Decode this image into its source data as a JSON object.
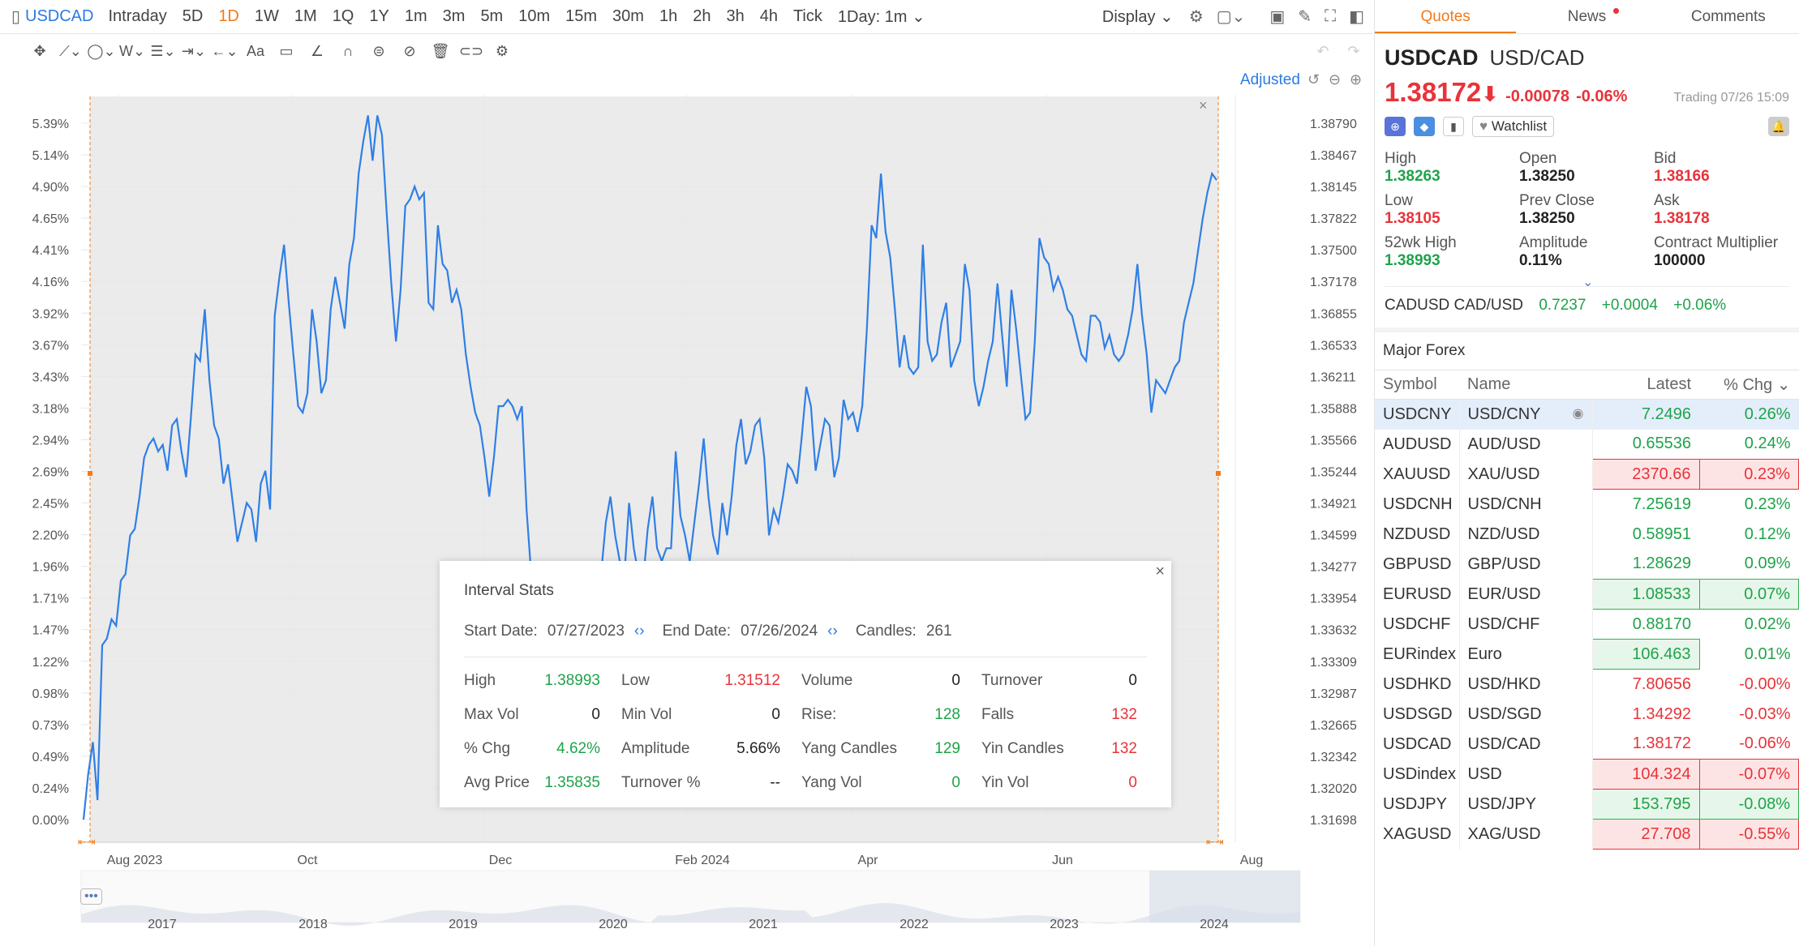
{
  "toolbar": {
    "symbol": "USDCAD",
    "timeframes": [
      "Intraday",
      "5D",
      "1D",
      "1W",
      "1M",
      "1Q",
      "1Y",
      "1m",
      "3m",
      "5m",
      "10m",
      "15m",
      "30m",
      "1h",
      "2h",
      "3h",
      "4h",
      "Tick"
    ],
    "active_timeframe": "1D",
    "interval_select": "1Day: 1m",
    "display": "Display",
    "adjusted": "Adjusted"
  },
  "chart_data": {
    "type": "line",
    "x_tick_labels": [
      "Aug 2023",
      "Oct",
      "Dec",
      "Feb 2024",
      "Apr",
      "Jun",
      "Aug"
    ],
    "y_left_ticks": [
      "5.39%",
      "5.14%",
      "4.90%",
      "4.65%",
      "4.41%",
      "4.16%",
      "3.92%",
      "3.67%",
      "3.43%",
      "3.18%",
      "2.94%",
      "2.69%",
      "2.45%",
      "2.20%",
      "1.96%",
      "1.71%",
      "1.47%",
      "1.22%",
      "0.98%",
      "0.73%",
      "0.49%",
      "0.24%",
      "0.00%"
    ],
    "y_right_ticks": [
      "1.38790",
      "1.38467",
      "1.38145",
      "1.37822",
      "1.37500",
      "1.37178",
      "1.36855",
      "1.36533",
      "1.36211",
      "1.35888",
      "1.35566",
      "1.35244",
      "1.34921",
      "1.34599",
      "1.34277",
      "1.33954",
      "1.33632",
      "1.33309",
      "1.32987",
      "1.32665",
      "1.32342",
      "1.32020",
      "1.31698"
    ],
    "series": [
      {
        "values": [
          0.0,
          0.35,
          0.6,
          0.15,
          1.35,
          1.4,
          1.55,
          1.5,
          1.85,
          1.9,
          2.2,
          2.25,
          2.5,
          2.8,
          2.9,
          2.95,
          2.85,
          2.9,
          2.7,
          3.05,
          3.1,
          2.85,
          2.65,
          3.1,
          3.6,
          3.55,
          3.95,
          3.4,
          3.05,
          2.95,
          2.6,
          2.75,
          2.45,
          2.15,
          2.3,
          2.45,
          2.4,
          2.15,
          2.6,
          2.7,
          2.4,
          3.9,
          4.2,
          4.45,
          4.0,
          3.6,
          3.2,
          3.15,
          3.3,
          3.95,
          3.7,
          3.3,
          3.4,
          3.95,
          4.2,
          4.0,
          3.8,
          4.3,
          4.5,
          5.0,
          5.25,
          5.45,
          5.1,
          5.45,
          5.3,
          4.7,
          4.15,
          3.7,
          4.1,
          4.75,
          4.8,
          4.9,
          4.8,
          4.85,
          4.0,
          3.95,
          4.6,
          4.3,
          4.25,
          4.0,
          4.1,
          3.95,
          3.6,
          3.35,
          3.15,
          3.05,
          2.8,
          2.5,
          2.8,
          3.2,
          3.2,
          3.25,
          3.2,
          3.1,
          3.2,
          2.4,
          1.9,
          1.4,
          1.2,
          1.0,
          0.8,
          0.6,
          0.4,
          0.6,
          0.8,
          1.0,
          1.2,
          1.0,
          1.3,
          1.5,
          1.7,
          1.9,
          2.3,
          2.5,
          2.2,
          2.0,
          1.9,
          2.45,
          2.1,
          1.9,
          1.85,
          2.25,
          2.5,
          2.1,
          2.0,
          2.1,
          2.1,
          2.85,
          2.35,
          2.2,
          2.0,
          2.3,
          2.6,
          2.95,
          2.5,
          2.2,
          2.05,
          2.45,
          2.2,
          2.5,
          2.9,
          3.1,
          2.75,
          2.85,
          3.05,
          3.1,
          2.8,
          2.2,
          2.4,
          2.3,
          2.5,
          2.75,
          2.7,
          2.6,
          2.95,
          3.35,
          3.2,
          2.7,
          2.9,
          3.1,
          3.05,
          2.65,
          2.8,
          3.25,
          3.1,
          3.15,
          3.0,
          3.2,
          3.8,
          4.6,
          4.5,
          5.0,
          4.55,
          4.35,
          3.95,
          3.5,
          3.75,
          3.5,
          3.45,
          3.5,
          4.45,
          3.7,
          3.55,
          3.6,
          3.85,
          4.0,
          3.5,
          3.6,
          3.7,
          4.3,
          4.1,
          3.4,
          3.2,
          3.35,
          3.55,
          3.7,
          4.15,
          3.75,
          3.35,
          4.1,
          3.8,
          3.45,
          3.1,
          3.15,
          3.7,
          4.5,
          4.35,
          4.3,
          4.1,
          4.2,
          4.1,
          3.95,
          3.9,
          3.75,
          3.6,
          3.55,
          3.9,
          3.9,
          3.85,
          3.65,
          3.75,
          3.6,
          3.55,
          3.6,
          3.75,
          3.95,
          4.3,
          3.9,
          3.6,
          3.15,
          3.4,
          3.35,
          3.3,
          3.4,
          3.5,
          3.55,
          3.85,
          4.0,
          4.15,
          4.4,
          4.65,
          4.85,
          5.0,
          4.95
        ]
      }
    ]
  },
  "nav_years": [
    "2017",
    "2018",
    "2019",
    "2020",
    "2021",
    "2022",
    "2023",
    "2024"
  ],
  "interval_stats": {
    "title": "Interval Stats",
    "start_label": "Start Date:",
    "start": "07/27/2023",
    "end_label": "End Date:",
    "end": "07/26/2024",
    "candles_label": "Candles:",
    "candles": "261",
    "cells": [
      [
        "High",
        "1.38993",
        "green"
      ],
      [
        "Low",
        "1.31512",
        "red"
      ],
      [
        "Volume",
        "0",
        "dark"
      ],
      [
        "Turnover",
        "0",
        "dark"
      ],
      [
        "Max Vol",
        "0",
        "dark"
      ],
      [
        "Min Vol",
        "0",
        "dark"
      ],
      [
        "Rise:",
        "128",
        "green"
      ],
      [
        "Falls",
        "132",
        "red"
      ],
      [
        "% Chg",
        "4.62%",
        "green"
      ],
      [
        "Amplitude",
        "5.66%",
        "dark"
      ],
      [
        "Yang Candles",
        "129",
        "green"
      ],
      [
        "Yin Candles",
        "132",
        "red"
      ],
      [
        "Avg Price",
        "1.35835",
        "green"
      ],
      [
        "Turnover %",
        "--",
        "dark"
      ],
      [
        "Yang Vol",
        "0",
        "green"
      ],
      [
        "Yin Vol",
        "0",
        "red"
      ]
    ]
  },
  "panel": {
    "tabs": [
      "Quotes",
      "News",
      "Comments"
    ],
    "symbol": "USDCAD",
    "name": "USD/CAD",
    "price": "1.38172",
    "change": "-0.00078",
    "pct": "-0.06%",
    "status": "Trading 07/26 15:09",
    "watchlist": "Watchlist",
    "stats": [
      [
        "High",
        "1.38263",
        "green"
      ],
      [
        "Open",
        "1.38250",
        "dark"
      ],
      [
        "Bid",
        "1.38166",
        "red"
      ],
      [
        "Low",
        "1.38105",
        "red"
      ],
      [
        "Prev Close",
        "1.38250",
        "dark"
      ],
      [
        "Ask",
        "1.38178",
        "red"
      ],
      [
        "52wk High",
        "1.38993",
        "green"
      ],
      [
        "Amplitude",
        "0.11%",
        "dark"
      ],
      [
        "Contract Multiplier",
        "100000",
        "dark"
      ]
    ],
    "cad_row": {
      "name": "CADUSD CAD/USD",
      "price": "0.7237",
      "change": "+0.0004",
      "pct": "+0.06%"
    },
    "forex_title": "Major Forex",
    "columns": [
      "Symbol",
      "Name",
      "Latest",
      "% Chg"
    ],
    "rows": [
      [
        "USDCNY",
        "USD/CNY",
        "7.2496",
        "0.26%",
        "g",
        ""
      ],
      [
        "AUDUSD",
        "AUD/USD",
        "0.65536",
        "0.24%",
        "g",
        ""
      ],
      [
        "XAUUSD",
        "XAU/USD",
        "2370.66",
        "0.23%",
        "r",
        "r"
      ],
      [
        "USDCNH",
        "USD/CNH",
        "7.25619",
        "0.23%",
        "g",
        ""
      ],
      [
        "NZDUSD",
        "NZD/USD",
        "0.58951",
        "0.12%",
        "g",
        ""
      ],
      [
        "GBPUSD",
        "GBP/USD",
        "1.28629",
        "0.09%",
        "g",
        ""
      ],
      [
        "EURUSD",
        "EUR/USD",
        "1.08533",
        "0.07%",
        "g",
        "g"
      ],
      [
        "USDCHF",
        "USD/CHF",
        "0.88170",
        "0.02%",
        "g",
        ""
      ],
      [
        "EURindex",
        "Euro",
        "106.463",
        "0.01%",
        "g",
        "g1"
      ],
      [
        "USDHKD",
        "USD/HKD",
        "7.80656",
        "-0.00%",
        "r",
        ""
      ],
      [
        "USDSGD",
        "USD/SGD",
        "1.34292",
        "-0.03%",
        "r",
        ""
      ],
      [
        "USDCAD",
        "USD/CAD",
        "1.38172",
        "-0.06%",
        "r",
        ""
      ],
      [
        "USDindex",
        "USD",
        "104.324",
        "-0.07%",
        "r",
        "r"
      ],
      [
        "USDJPY",
        "USD/JPY",
        "153.795",
        "-0.08%",
        "g",
        "g"
      ],
      [
        "XAGUSD",
        "XAG/USD",
        "27.708",
        "-0.55%",
        "r",
        "r"
      ]
    ]
  }
}
